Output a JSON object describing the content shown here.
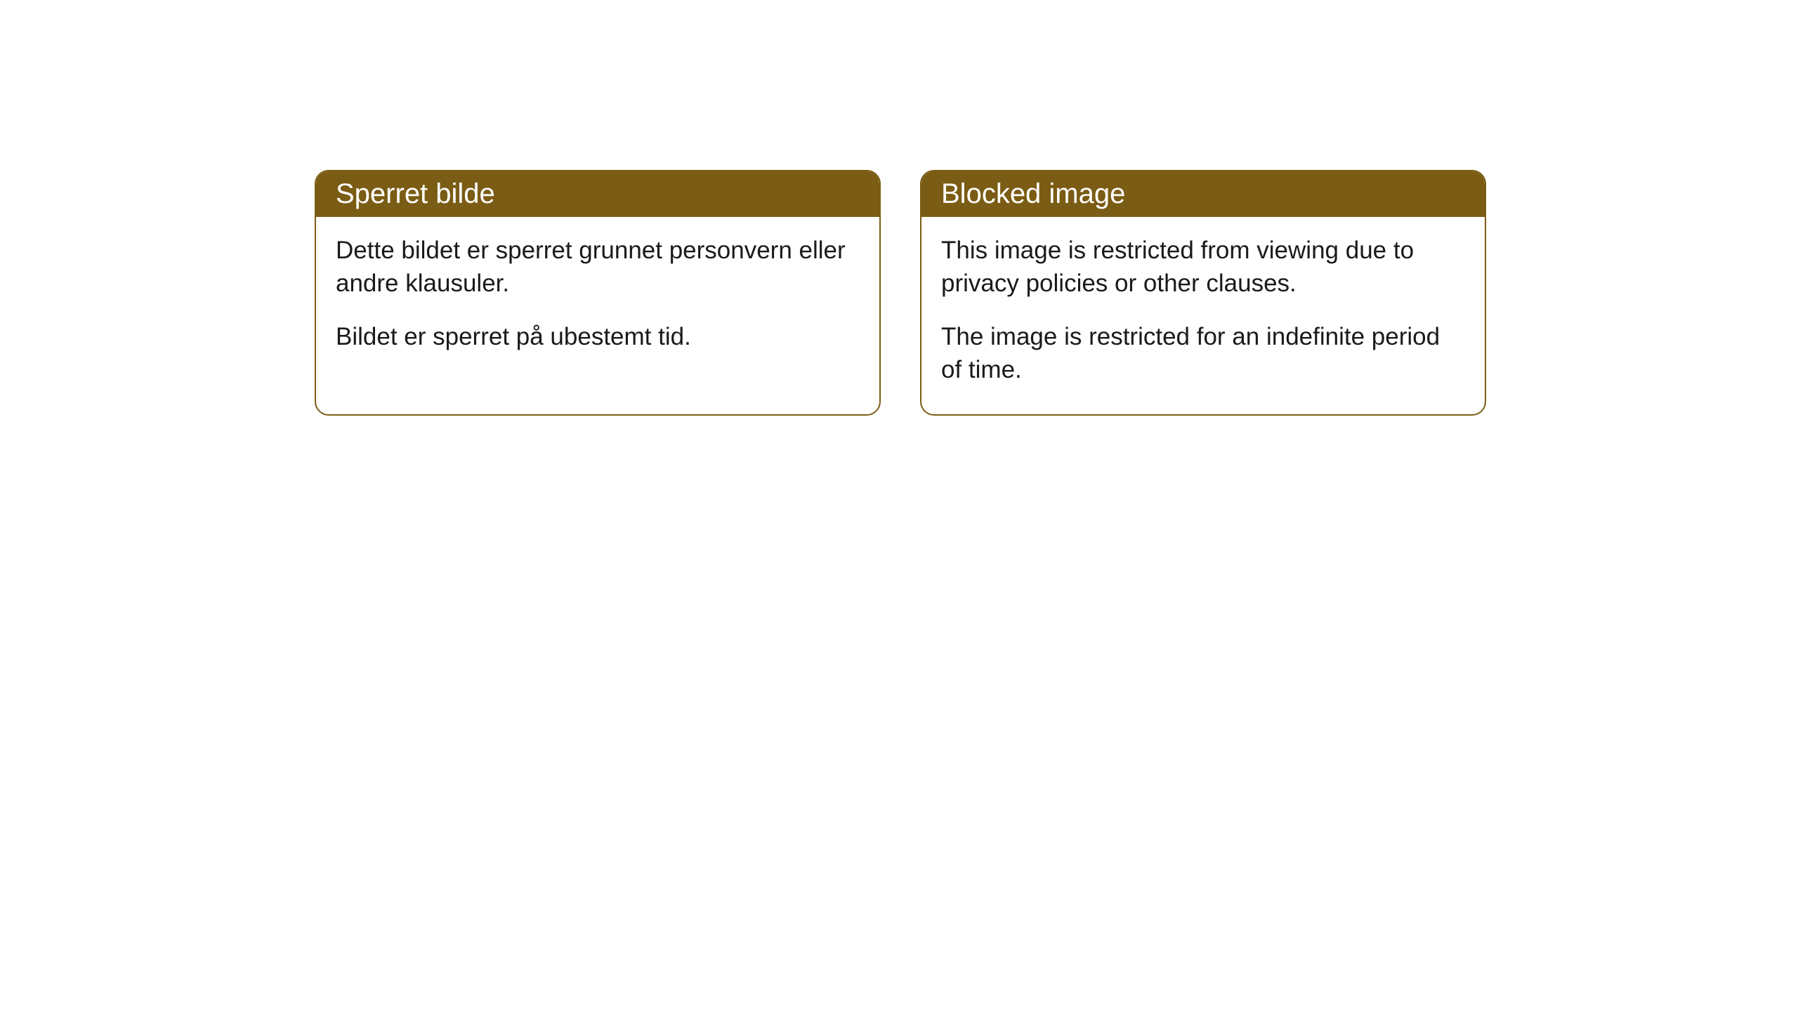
{
  "cards": [
    {
      "title": "Sperret bilde",
      "paragraph1": "Dette bildet er sperret grunnet personvern eller andre klausuler.",
      "paragraph2": "Bildet er sperret på ubestemt tid."
    },
    {
      "title": "Blocked image",
      "paragraph1": "This image is restricted from viewing due to privacy policies or other clauses.",
      "paragraph2": "The image is restricted for an indefinite period of time."
    }
  ],
  "styling": {
    "header_bg_color": "#7b5c14",
    "header_text_color": "#ffffff",
    "card_border_color": "#7b5c14",
    "card_bg_color": "#ffffff",
    "body_text_color": "#1a1a1a",
    "card_border_radius": 20,
    "header_font_size": 40,
    "body_font_size": 35
  }
}
